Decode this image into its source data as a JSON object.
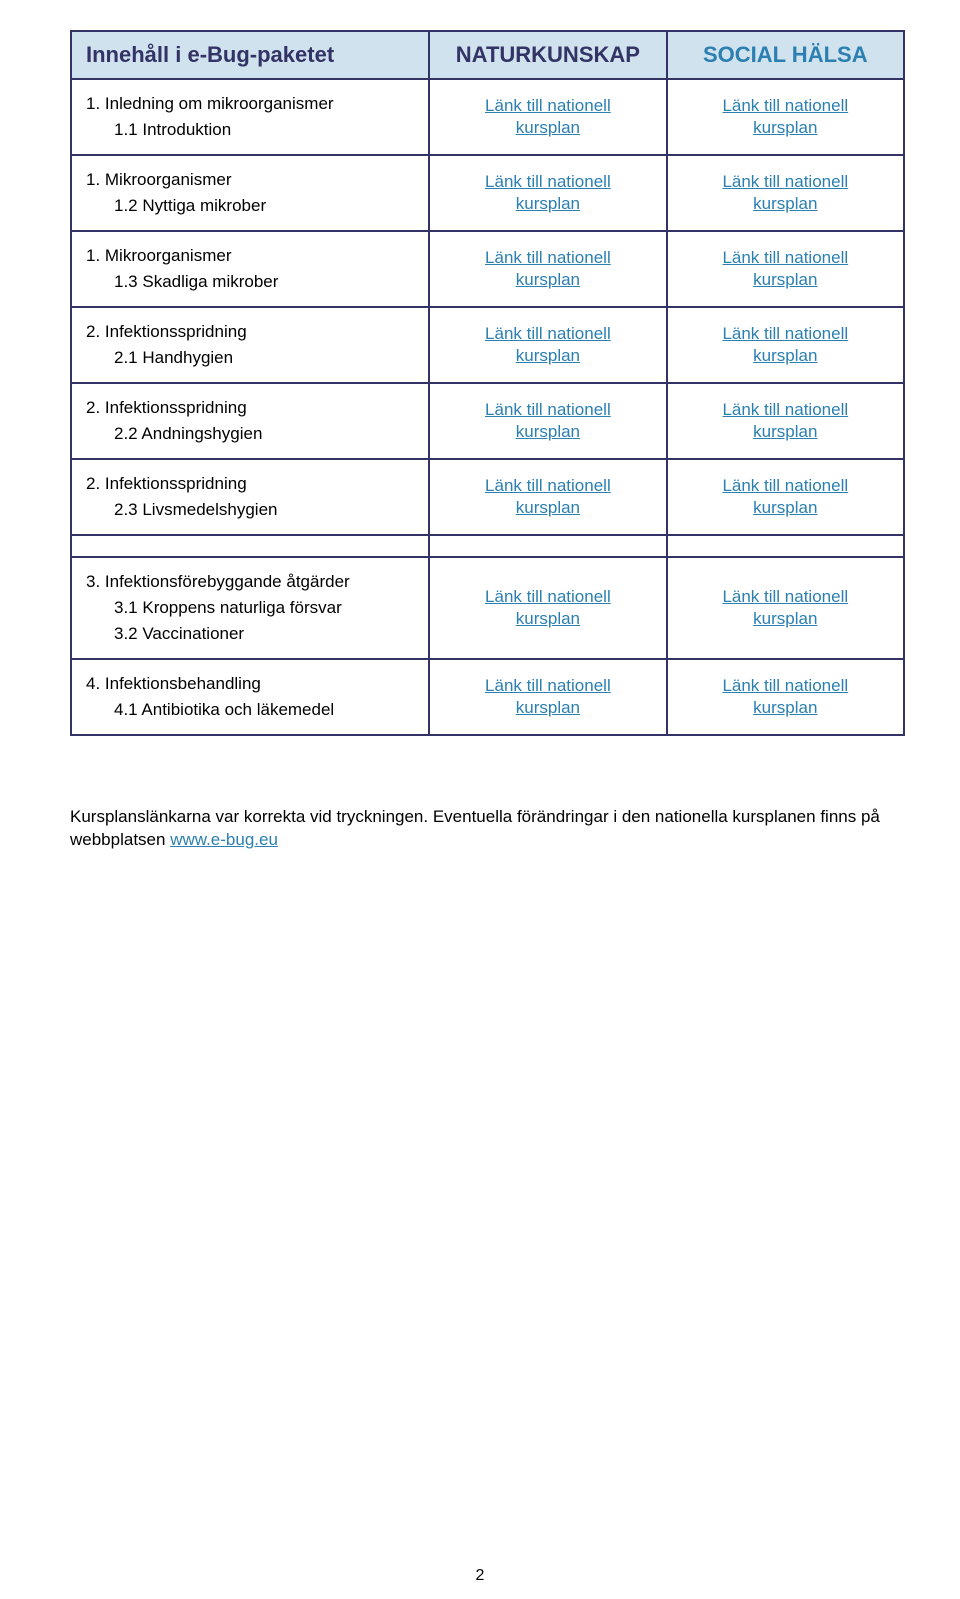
{
  "header": {
    "col1": "Innehåll i e-Bug-paketet",
    "col2": "NATURKUNSKAP",
    "col3": "SOCIAL HÄLSA"
  },
  "link_text_line1": "Länk till nationell",
  "link_text_line2": "kursplan",
  "rows": [
    {
      "title": "1. Inledning om mikroorganismer",
      "sub": "1.1 Introduktion"
    },
    {
      "title": "1. Mikroorganismer",
      "sub": "1.2 Nyttiga mikrober"
    },
    {
      "title": "1. Mikroorganismer",
      "sub": "1.3 Skadliga mikrober"
    },
    {
      "title": "2. Infektionsspridning",
      "sub": "2.1 Handhygien"
    },
    {
      "title": "2. Infektionsspridning",
      "sub": "2.2 Andningshygien"
    },
    {
      "title": "2. Infektionsspridning",
      "sub": "2.3 Livsmedelshygien"
    }
  ],
  "rows2": [
    {
      "title": "3. Infektionsförebyggande åtgärder",
      "sub": "3.1 Kroppens naturliga försvar",
      "extra": "3.2 Vaccinationer"
    },
    {
      "title": "4. Infektionsbehandling",
      "sub": "4.1 Antibiotika och läkemedel"
    }
  ],
  "footnote_a": "Kursplanslänkarna var korrekta vid tryckningen. Eventuella förändringar i den nationella kursplanen finns på webbplatsen ",
  "footnote_link": "www.e-bug.eu",
  "page_number": "2",
  "colors": {
    "border": "#333366",
    "header_bg": "#cfe2ed",
    "header_text": "#333366",
    "header_right_text": "#2b7fb1",
    "link_color": "#2b7fb1",
    "body_text": "#000000",
    "background": "#ffffff"
  },
  "col_widths_pct": [
    43,
    28.5,
    28.5
  ],
  "fonts": {
    "header_family": "Comic Sans MS",
    "header_size_pt": 17,
    "body_family": "Arial",
    "body_size_pt": 13
  }
}
